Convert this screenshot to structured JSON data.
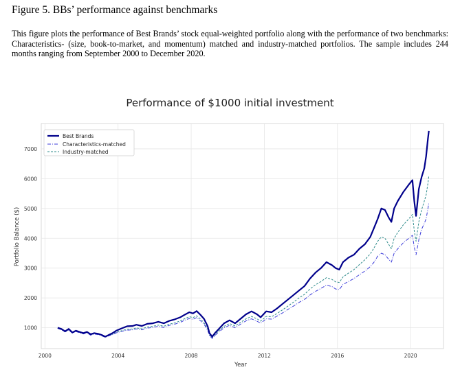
{
  "figure": {
    "heading": "Figure 5. BBs’ performance against benchmarks",
    "caption": "This figure plots the performance of Best Brands’ stock equal-weighted portfolio along with the performance of two benchmarks: Characteristics- (size, book-to-market, and momentum) matched and industry-matched portfolios. The sample includes 244 months ranging from September 2000 to December 2020."
  },
  "chart_data": {
    "type": "line",
    "title": "Performance of $1000 initial investment",
    "xlabel": "Year",
    "ylabel": "Portfolio Balance ($)",
    "xlim": [
      1999.8,
      2021.8
    ],
    "ylim": [
      300,
      7850
    ],
    "xticks": [
      2000,
      2004,
      2008,
      2012,
      2016,
      2020
    ],
    "yticks": [
      1000,
      2000,
      3000,
      4000,
      5000,
      6000,
      7000
    ],
    "grid": true,
    "legend_position": "top-left",
    "series": [
      {
        "name": "Best Brands",
        "color": "#00008b",
        "style": "solid",
        "points": [
          [
            2000.7,
            1000
          ],
          [
            2000.9,
            960
          ],
          [
            2001.1,
            880
          ],
          [
            2001.3,
            960
          ],
          [
            2001.5,
            840
          ],
          [
            2001.7,
            900
          ],
          [
            2001.9,
            860
          ],
          [
            2002.1,
            820
          ],
          [
            2002.3,
            860
          ],
          [
            2002.5,
            780
          ],
          [
            2002.7,
            820
          ],
          [
            2002.9,
            800
          ],
          [
            2003.1,
            760
          ],
          [
            2003.3,
            700
          ],
          [
            2003.5,
            760
          ],
          [
            2003.7,
            820
          ],
          [
            2003.9,
            900
          ],
          [
            2004.2,
            980
          ],
          [
            2004.5,
            1050
          ],
          [
            2004.8,
            1060
          ],
          [
            2005.0,
            1100
          ],
          [
            2005.3,
            1060
          ],
          [
            2005.6,
            1130
          ],
          [
            2005.9,
            1150
          ],
          [
            2006.2,
            1200
          ],
          [
            2006.5,
            1150
          ],
          [
            2006.8,
            1230
          ],
          [
            2007.1,
            1280
          ],
          [
            2007.4,
            1350
          ],
          [
            2007.6,
            1420
          ],
          [
            2007.9,
            1520
          ],
          [
            2008.1,
            1480
          ],
          [
            2008.3,
            1560
          ],
          [
            2008.5,
            1440
          ],
          [
            2008.7,
            1300
          ],
          [
            2008.9,
            1050
          ],
          [
            2009.0,
            820
          ],
          [
            2009.15,
            700
          ],
          [
            2009.3,
            820
          ],
          [
            2009.5,
            950
          ],
          [
            2009.8,
            1150
          ],
          [
            2010.1,
            1250
          ],
          [
            2010.4,
            1150
          ],
          [
            2010.7,
            1300
          ],
          [
            2011.0,
            1450
          ],
          [
            2011.3,
            1550
          ],
          [
            2011.6,
            1450
          ],
          [
            2011.8,
            1350
          ],
          [
            2012.1,
            1550
          ],
          [
            2012.4,
            1520
          ],
          [
            2012.7,
            1650
          ],
          [
            2013.0,
            1800
          ],
          [
            2013.3,
            1950
          ],
          [
            2013.6,
            2100
          ],
          [
            2013.9,
            2250
          ],
          [
            2014.2,
            2400
          ],
          [
            2014.5,
            2650
          ],
          [
            2014.8,
            2850
          ],
          [
            2015.1,
            3000
          ],
          [
            2015.4,
            3200
          ],
          [
            2015.7,
            3100
          ],
          [
            2015.9,
            3000
          ],
          [
            2016.1,
            2950
          ],
          [
            2016.3,
            3200
          ],
          [
            2016.6,
            3350
          ],
          [
            2016.9,
            3450
          ],
          [
            2017.2,
            3650
          ],
          [
            2017.5,
            3800
          ],
          [
            2017.8,
            4050
          ],
          [
            2018.0,
            4350
          ],
          [
            2018.2,
            4650
          ],
          [
            2018.4,
            5000
          ],
          [
            2018.6,
            4950
          ],
          [
            2018.8,
            4700
          ],
          [
            2018.95,
            4550
          ],
          [
            2019.1,
            5000
          ],
          [
            2019.3,
            5250
          ],
          [
            2019.6,
            5550
          ],
          [
            2019.9,
            5800
          ],
          [
            2020.1,
            5950
          ],
          [
            2020.2,
            5250
          ],
          [
            2020.3,
            4750
          ],
          [
            2020.45,
            5650
          ],
          [
            2020.6,
            6050
          ],
          [
            2020.75,
            6350
          ],
          [
            2020.85,
            6750
          ],
          [
            2020.95,
            7350
          ],
          [
            2021.0,
            7600
          ]
        ]
      },
      {
        "name": "Characteristics-matched",
        "color": "#3a3ad9",
        "style": "dashdot",
        "points": [
          [
            2000.7,
            980
          ],
          [
            2000.9,
            930
          ],
          [
            2001.1,
            860
          ],
          [
            2001.3,
            920
          ],
          [
            2001.5,
            820
          ],
          [
            2001.7,
            870
          ],
          [
            2001.9,
            830
          ],
          [
            2002.1,
            790
          ],
          [
            2002.3,
            830
          ],
          [
            2002.5,
            750
          ],
          [
            2002.7,
            790
          ],
          [
            2002.9,
            770
          ],
          [
            2003.1,
            730
          ],
          [
            2003.3,
            680
          ],
          [
            2003.5,
            730
          ],
          [
            2003.7,
            770
          ],
          [
            2003.9,
            830
          ],
          [
            2004.2,
            880
          ],
          [
            2004.5,
            920
          ],
          [
            2004.8,
            930
          ],
          [
            2005.0,
            960
          ],
          [
            2005.3,
            930
          ],
          [
            2005.6,
            990
          ],
          [
            2005.9,
            1010
          ],
          [
            2006.2,
            1050
          ],
          [
            2006.5,
            1010
          ],
          [
            2006.8,
            1080
          ],
          [
            2007.1,
            1120
          ],
          [
            2007.4,
            1180
          ],
          [
            2007.6,
            1240
          ],
          [
            2007.9,
            1310
          ],
          [
            2008.1,
            1280
          ],
          [
            2008.3,
            1340
          ],
          [
            2008.5,
            1240
          ],
          [
            2008.7,
            1120
          ],
          [
            2008.9,
            920
          ],
          [
            2009.0,
            740
          ],
          [
            2009.15,
            640
          ],
          [
            2009.3,
            740
          ],
          [
            2009.5,
            850
          ],
          [
            2009.8,
            1000
          ],
          [
            2010.1,
            1080
          ],
          [
            2010.4,
            1000
          ],
          [
            2010.7,
            1120
          ],
          [
            2011.0,
            1230
          ],
          [
            2011.3,
            1300
          ],
          [
            2011.6,
            1220
          ],
          [
            2011.8,
            1150
          ],
          [
            2012.1,
            1300
          ],
          [
            2012.4,
            1290
          ],
          [
            2012.7,
            1390
          ],
          [
            2013.0,
            1500
          ],
          [
            2013.3,
            1620
          ],
          [
            2013.6,
            1730
          ],
          [
            2013.9,
            1850
          ],
          [
            2014.2,
            1950
          ],
          [
            2014.5,
            2100
          ],
          [
            2014.8,
            2220
          ],
          [
            2015.1,
            2320
          ],
          [
            2015.4,
            2430
          ],
          [
            2015.7,
            2380
          ],
          [
            2015.9,
            2300
          ],
          [
            2016.1,
            2280
          ],
          [
            2016.3,
            2450
          ],
          [
            2016.6,
            2550
          ],
          [
            2016.9,
            2650
          ],
          [
            2017.2,
            2780
          ],
          [
            2017.5,
            2900
          ],
          [
            2017.8,
            3050
          ],
          [
            2018.0,
            3200
          ],
          [
            2018.2,
            3400
          ],
          [
            2018.4,
            3500
          ],
          [
            2018.6,
            3450
          ],
          [
            2018.8,
            3300
          ],
          [
            2018.95,
            3200
          ],
          [
            2019.1,
            3500
          ],
          [
            2019.3,
            3650
          ],
          [
            2019.6,
            3850
          ],
          [
            2019.9,
            4000
          ],
          [
            2020.1,
            4100
          ],
          [
            2020.2,
            3700
          ],
          [
            2020.3,
            3450
          ],
          [
            2020.45,
            3950
          ],
          [
            2020.6,
            4300
          ],
          [
            2020.75,
            4500
          ],
          [
            2020.85,
            4650
          ],
          [
            2020.95,
            5000
          ],
          [
            2021.0,
            5200
          ]
        ]
      },
      {
        "name": "Industry-matched",
        "color": "#2e8b8b",
        "style": "dashed",
        "points": [
          [
            2000.7,
            990
          ],
          [
            2000.9,
            945
          ],
          [
            2001.1,
            870
          ],
          [
            2001.3,
            935
          ],
          [
            2001.5,
            830
          ],
          [
            2001.7,
            885
          ],
          [
            2001.9,
            845
          ],
          [
            2002.1,
            805
          ],
          [
            2002.3,
            845
          ],
          [
            2002.5,
            765
          ],
          [
            2002.7,
            805
          ],
          [
            2002.9,
            785
          ],
          [
            2003.1,
            745
          ],
          [
            2003.3,
            690
          ],
          [
            2003.5,
            745
          ],
          [
            2003.7,
            790
          ],
          [
            2003.9,
            850
          ],
          [
            2004.2,
            900
          ],
          [
            2004.5,
            950
          ],
          [
            2004.8,
            960
          ],
          [
            2005.0,
            995
          ],
          [
            2005.3,
            965
          ],
          [
            2005.6,
            1025
          ],
          [
            2005.9,
            1050
          ],
          [
            2006.2,
            1090
          ],
          [
            2006.5,
            1050
          ],
          [
            2006.8,
            1120
          ],
          [
            2007.1,
            1160
          ],
          [
            2007.4,
            1230
          ],
          [
            2007.6,
            1290
          ],
          [
            2007.9,
            1370
          ],
          [
            2008.1,
            1340
          ],
          [
            2008.3,
            1400
          ],
          [
            2008.5,
            1300
          ],
          [
            2008.7,
            1170
          ],
          [
            2008.9,
            960
          ],
          [
            2009.0,
            770
          ],
          [
            2009.15,
            660
          ],
          [
            2009.3,
            770
          ],
          [
            2009.5,
            890
          ],
          [
            2009.8,
            1050
          ],
          [
            2010.1,
            1140
          ],
          [
            2010.4,
            1060
          ],
          [
            2010.7,
            1180
          ],
          [
            2011.0,
            1300
          ],
          [
            2011.3,
            1380
          ],
          [
            2011.6,
            1300
          ],
          [
            2011.8,
            1220
          ],
          [
            2012.1,
            1380
          ],
          [
            2012.4,
            1370
          ],
          [
            2012.7,
            1480
          ],
          [
            2013.0,
            1600
          ],
          [
            2013.3,
            1730
          ],
          [
            2013.6,
            1860
          ],
          [
            2013.9,
            2000
          ],
          [
            2014.2,
            2120
          ],
          [
            2014.5,
            2300
          ],
          [
            2014.8,
            2440
          ],
          [
            2015.1,
            2550
          ],
          [
            2015.4,
            2680
          ],
          [
            2015.7,
            2620
          ],
          [
            2015.9,
            2540
          ],
          [
            2016.1,
            2520
          ],
          [
            2016.3,
            2700
          ],
          [
            2016.6,
            2830
          ],
          [
            2016.9,
            2950
          ],
          [
            2017.2,
            3120
          ],
          [
            2017.5,
            3280
          ],
          [
            2017.8,
            3480
          ],
          [
            2018.0,
            3680
          ],
          [
            2018.2,
            3900
          ],
          [
            2018.4,
            4050
          ],
          [
            2018.6,
            4000
          ],
          [
            2018.8,
            3800
          ],
          [
            2018.95,
            3650
          ],
          [
            2019.1,
            4000
          ],
          [
            2019.3,
            4200
          ],
          [
            2019.6,
            4450
          ],
          [
            2019.9,
            4650
          ],
          [
            2020.1,
            4800
          ],
          [
            2020.2,
            4250
          ],
          [
            2020.3,
            3900
          ],
          [
            2020.45,
            4550
          ],
          [
            2020.6,
            4950
          ],
          [
            2020.75,
            5250
          ],
          [
            2020.85,
            5450
          ],
          [
            2020.95,
            5850
          ],
          [
            2021.0,
            6100
          ]
        ]
      }
    ]
  }
}
